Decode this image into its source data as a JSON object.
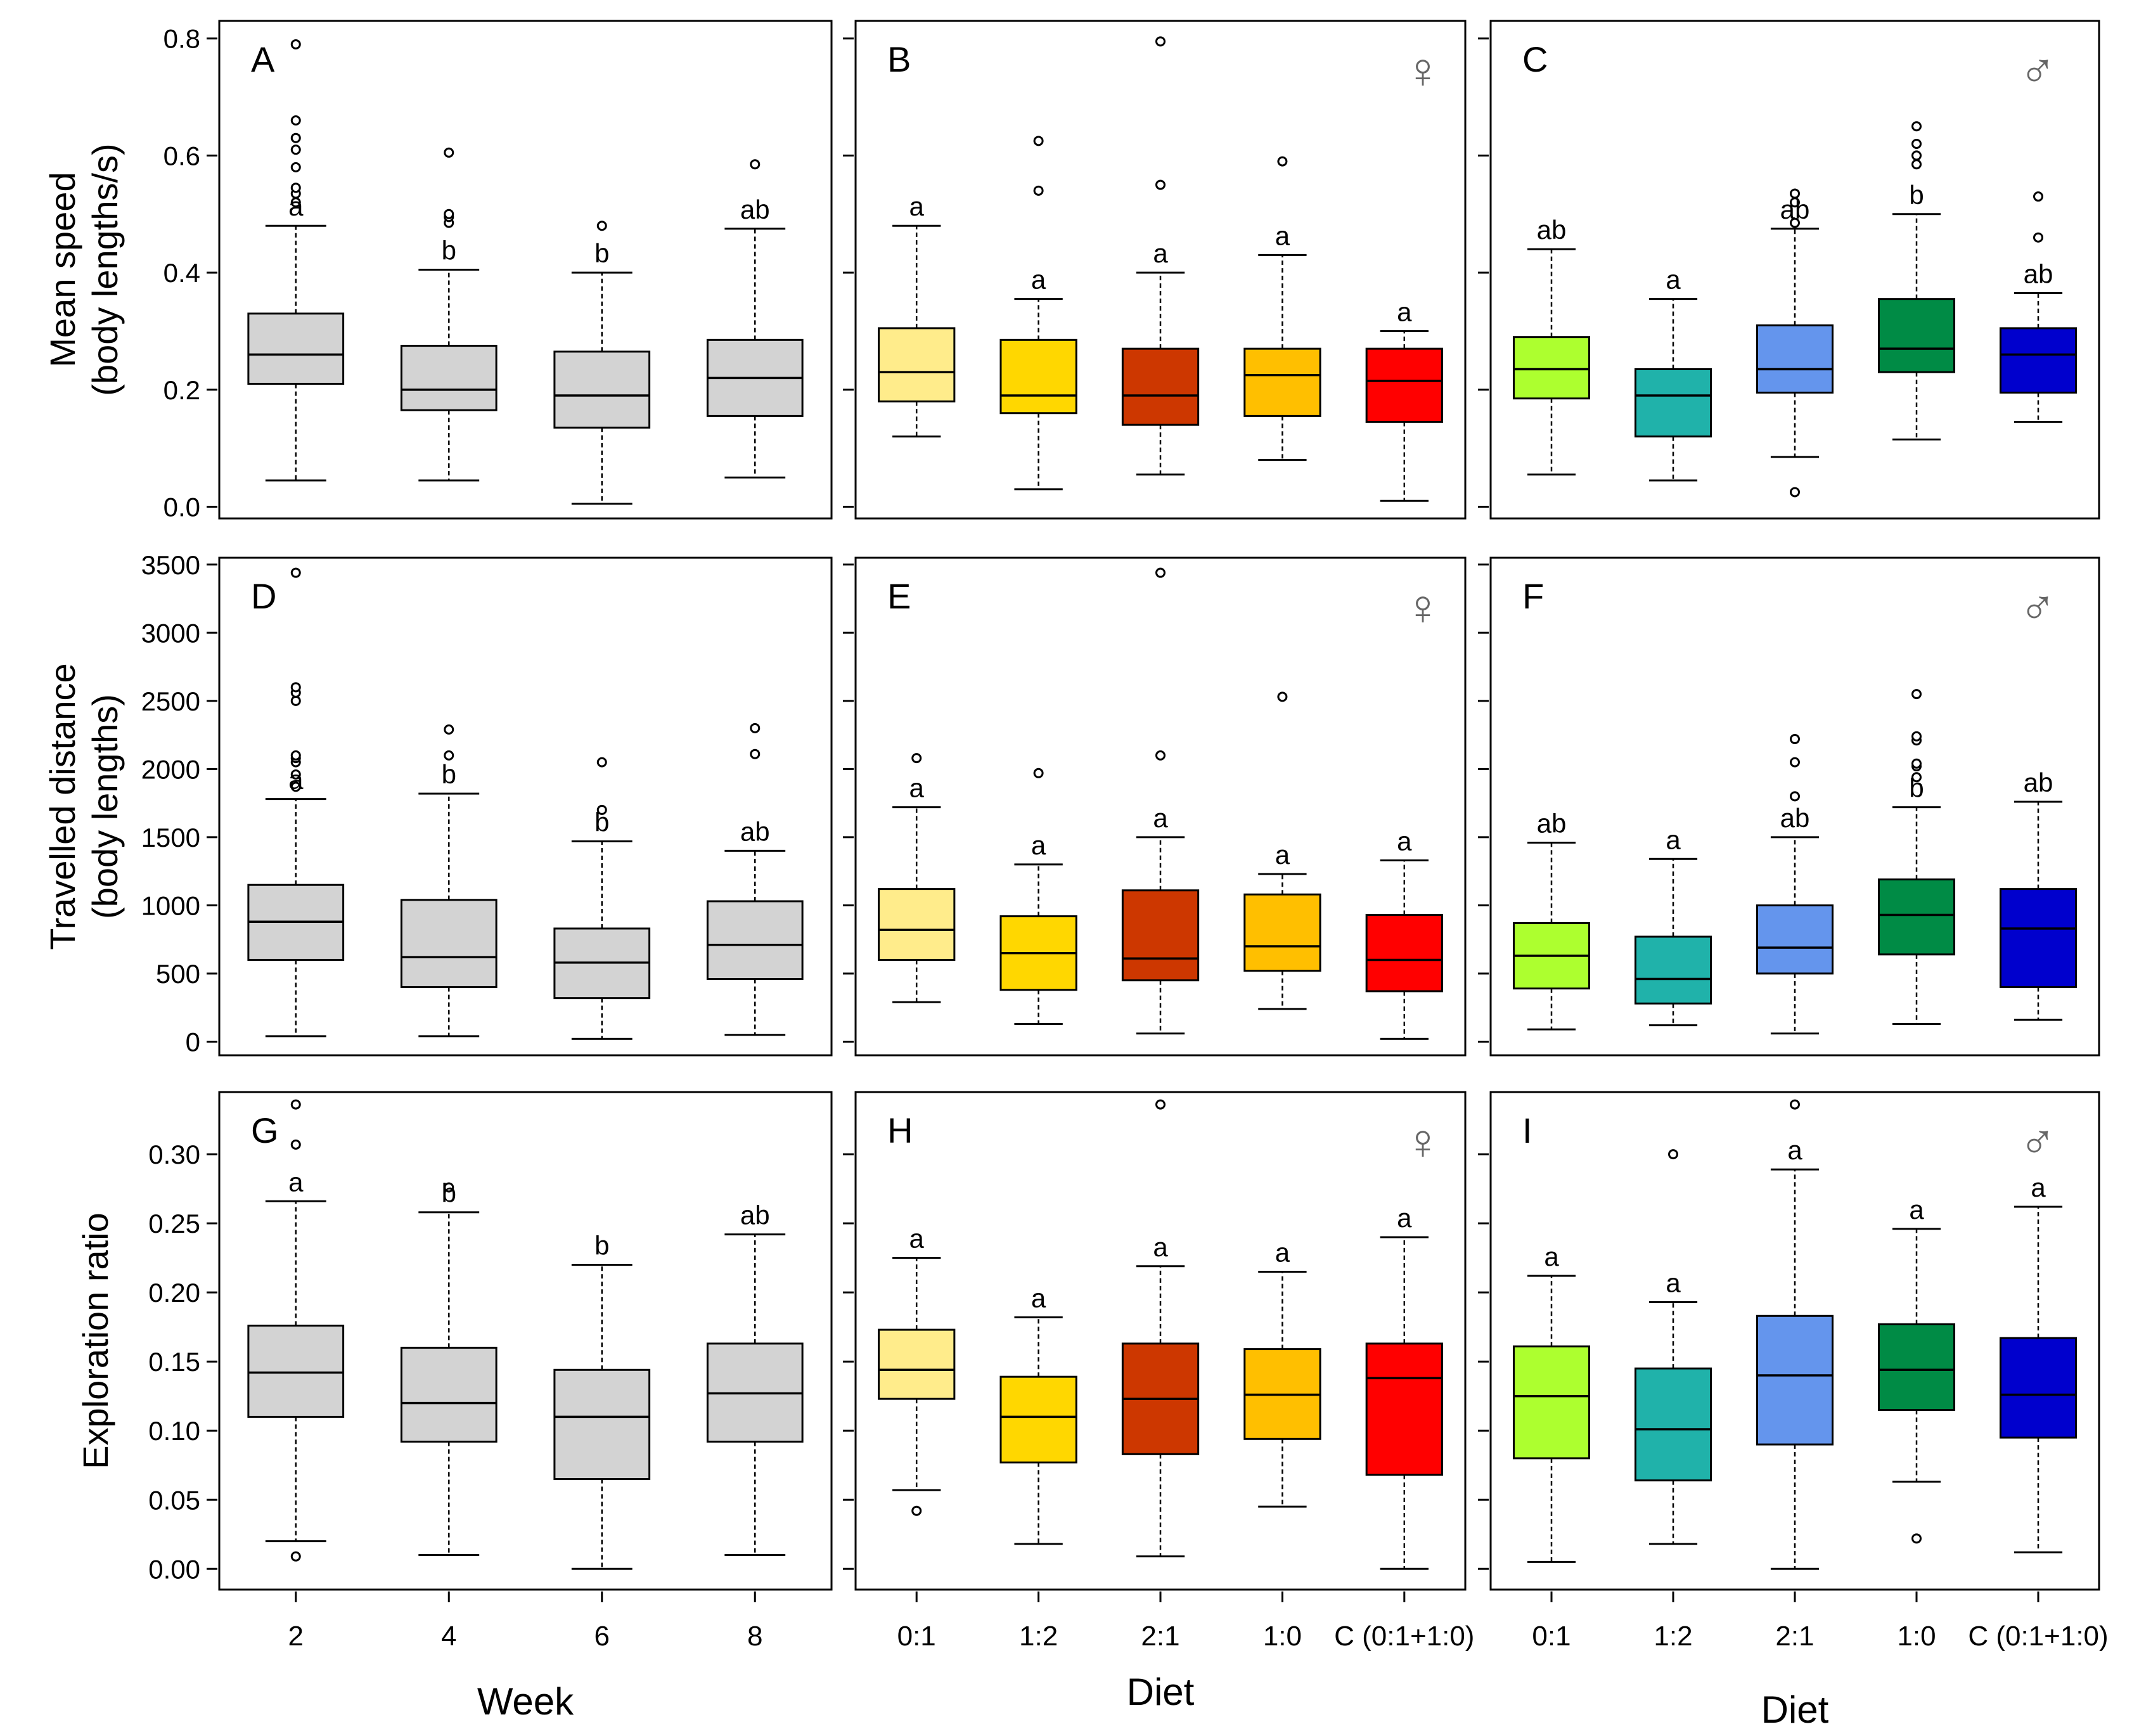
{
  "chart_data": {
    "type": "boxplot",
    "grid": false,
    "rows": [
      {
        "ylabel_line1": "Mean  speed",
        "ylabel_line2": "(body lengths/s)",
        "ylim": [
          -0.02,
          0.83
        ],
        "ticks": [
          "0.0",
          "0.2",
          "0.4",
          "0.6",
          "0.8"
        ],
        "tick_values": [
          0.0,
          0.2,
          0.4,
          0.6,
          0.8
        ]
      },
      {
        "ylabel_line1": "Travelled  distance",
        "ylabel_line2": "(body lengths)",
        "ylim": [
          -100,
          3550
        ],
        "ticks": [
          "0",
          "500",
          "1000",
          "1500",
          "2000",
          "2500",
          "3000",
          "3500"
        ],
        "tick_values": [
          0,
          500,
          1000,
          1500,
          2000,
          2500,
          3000,
          3500
        ]
      },
      {
        "ylabel_line1": "Exploration  ratio",
        "ylabel_line2": "",
        "ylim": [
          -0.015,
          0.345
        ],
        "ticks": [
          "0.00",
          "0.05",
          "0.10",
          "0.15",
          "0.20",
          "0.25",
          "0.30"
        ],
        "tick_values": [
          0.0,
          0.05,
          0.1,
          0.15,
          0.2,
          0.25,
          0.3
        ]
      }
    ],
    "columns": [
      {
        "xlabel": "Week",
        "sex": "",
        "categories": [
          "2",
          "4",
          "6",
          "8"
        ]
      },
      {
        "xlabel": "Diet",
        "sex": "♀",
        "categories": [
          "0:1",
          "1:2",
          "2:1",
          "1:0",
          "C (0:1+1:0)"
        ]
      },
      {
        "xlabel": "Diet",
        "sex": "♂",
        "categories": [
          "0:1",
          "1:2",
          "2:1",
          "1:0",
          "C (0:1+1:0)"
        ]
      }
    ],
    "panels": [
      {
        "letter": "A",
        "row": 0,
        "col": 0,
        "boxes": [
          {
            "color": "#d3d3d3",
            "q1": 0.21,
            "median": 0.26,
            "q3": 0.33,
            "low": 0.045,
            "high": 0.48,
            "outliers": [
              0.52,
              0.535,
              0.545,
              0.58,
              0.61,
              0.63,
              0.66,
              0.79
            ],
            "sig": "a"
          },
          {
            "color": "#d3d3d3",
            "q1": 0.165,
            "median": 0.2,
            "q3": 0.275,
            "low": 0.045,
            "high": 0.405,
            "outliers": [
              0.485,
              0.495,
              0.5,
              0.605
            ],
            "sig": "b"
          },
          {
            "color": "#d3d3d3",
            "q1": 0.135,
            "median": 0.19,
            "q3": 0.265,
            "low": 0.005,
            "high": 0.4,
            "outliers": [
              0.48
            ],
            "sig": "b"
          },
          {
            "color": "#d3d3d3",
            "q1": 0.155,
            "median": 0.22,
            "q3": 0.285,
            "low": 0.05,
            "high": 0.475,
            "outliers": [
              0.585
            ],
            "sig": "ab"
          }
        ]
      },
      {
        "letter": "B",
        "row": 0,
        "col": 1,
        "boxes": [
          {
            "color": "#ffec8b",
            "q1": 0.18,
            "median": 0.23,
            "q3": 0.305,
            "low": 0.12,
            "high": 0.48,
            "outliers": [],
            "sig": "a"
          },
          {
            "color": "#ffd700",
            "q1": 0.16,
            "median": 0.19,
            "q3": 0.285,
            "low": 0.03,
            "high": 0.355,
            "outliers": [
              0.54,
              0.625
            ],
            "sig": "a"
          },
          {
            "color": "#cd3700",
            "q1": 0.14,
            "median": 0.19,
            "q3": 0.27,
            "low": 0.055,
            "high": 0.4,
            "outliers": [
              0.55,
              0.795
            ],
            "sig": "a"
          },
          {
            "color": "#ffbf00",
            "q1": 0.155,
            "median": 0.225,
            "q3": 0.27,
            "low": 0.08,
            "high": 0.43,
            "outliers": [
              0.59
            ],
            "sig": "a"
          },
          {
            "color": "#ff0000",
            "q1": 0.145,
            "median": 0.215,
            "q3": 0.27,
            "low": 0.01,
            "high": 0.3,
            "outliers": [],
            "sig": "a"
          }
        ]
      },
      {
        "letter": "C",
        "row": 0,
        "col": 2,
        "boxes": [
          {
            "color": "#adff2f",
            "q1": 0.185,
            "median": 0.235,
            "q3": 0.29,
            "low": 0.055,
            "high": 0.44,
            "outliers": [],
            "sig": "ab"
          },
          {
            "color": "#20b2aa",
            "q1": 0.12,
            "median": 0.19,
            "q3": 0.235,
            "low": 0.045,
            "high": 0.355,
            "outliers": [],
            "sig": "a"
          },
          {
            "color": "#6495ed",
            "q1": 0.195,
            "median": 0.235,
            "q3": 0.31,
            "low": 0.085,
            "high": 0.475,
            "outliers": [
              0.025,
              0.485,
              0.52,
              0.535
            ],
            "sig": "ab"
          },
          {
            "color": "#008b45",
            "q1": 0.23,
            "median": 0.27,
            "q3": 0.355,
            "low": 0.115,
            "high": 0.5,
            "outliers": [
              0.585,
              0.6,
              0.62,
              0.65
            ],
            "sig": "b"
          },
          {
            "color": "#0000cd",
            "q1": 0.195,
            "median": 0.26,
            "q3": 0.305,
            "low": 0.145,
            "high": 0.365,
            "outliers": [
              0.46,
              0.53
            ],
            "sig": "ab"
          }
        ]
      },
      {
        "letter": "D",
        "row": 1,
        "col": 0,
        "boxes": [
          {
            "color": "#d3d3d3",
            "q1": 600,
            "median": 880,
            "q3": 1150,
            "low": 40,
            "high": 1780,
            "outliers": [
              1870,
              1960,
              2050,
              2080,
              2100,
              2500,
              2560,
              2600,
              3440
            ],
            "sig": "a"
          },
          {
            "color": "#d3d3d3",
            "q1": 400,
            "median": 620,
            "q3": 1040,
            "low": 40,
            "high": 1820,
            "outliers": [
              2100,
              2290
            ],
            "sig": "b"
          },
          {
            "color": "#d3d3d3",
            "q1": 320,
            "median": 580,
            "q3": 830,
            "low": 20,
            "high": 1470,
            "outliers": [
              1700,
              2050
            ],
            "sig": "b"
          },
          {
            "color": "#d3d3d3",
            "q1": 460,
            "median": 710,
            "q3": 1030,
            "low": 50,
            "high": 1400,
            "outliers": [
              2110,
              2300
            ],
            "sig": "ab"
          }
        ]
      },
      {
        "letter": "E",
        "row": 1,
        "col": 1,
        "boxes": [
          {
            "color": "#ffec8b",
            "q1": 600,
            "median": 820,
            "q3": 1120,
            "low": 290,
            "high": 1720,
            "outliers": [
              2080
            ],
            "sig": "a"
          },
          {
            "color": "#ffd700",
            "q1": 380,
            "median": 650,
            "q3": 920,
            "low": 130,
            "high": 1300,
            "outliers": [
              1970
            ],
            "sig": "a"
          },
          {
            "color": "#cd3700",
            "q1": 450,
            "median": 610,
            "q3": 1110,
            "low": 60,
            "high": 1500,
            "outliers": [
              2100,
              3440
            ],
            "sig": "a"
          },
          {
            "color": "#ffbf00",
            "q1": 520,
            "median": 700,
            "q3": 1080,
            "low": 240,
            "high": 1230,
            "outliers": [
              2530
            ],
            "sig": "a"
          },
          {
            "color": "#ff0000",
            "q1": 370,
            "median": 600,
            "q3": 930,
            "low": 20,
            "high": 1330,
            "outliers": [],
            "sig": "a"
          }
        ]
      },
      {
        "letter": "F",
        "row": 1,
        "col": 2,
        "boxes": [
          {
            "color": "#adff2f",
            "q1": 390,
            "median": 630,
            "q3": 870,
            "low": 90,
            "high": 1460,
            "outliers": [],
            "sig": "ab"
          },
          {
            "color": "#20b2aa",
            "q1": 280,
            "median": 460,
            "q3": 770,
            "low": 120,
            "high": 1340,
            "outliers": [],
            "sig": "a"
          },
          {
            "color": "#6495ed",
            "q1": 500,
            "median": 690,
            "q3": 1000,
            "low": 60,
            "high": 1500,
            "outliers": [
              1800,
              2050,
              2220
            ],
            "sig": "ab"
          },
          {
            "color": "#008b45",
            "q1": 640,
            "median": 930,
            "q3": 1190,
            "low": 130,
            "high": 1720,
            "outliers": [
              1940,
              2020,
              2040,
              2210,
              2240,
              2550
            ],
            "sig": "b"
          },
          {
            "color": "#0000cd",
            "q1": 400,
            "median": 830,
            "q3": 1120,
            "low": 160,
            "high": 1760,
            "outliers": [],
            "sig": "ab"
          }
        ]
      },
      {
        "letter": "G",
        "row": 2,
        "col": 0,
        "boxes": [
          {
            "color": "#d3d3d3",
            "q1": 0.11,
            "median": 0.142,
            "q3": 0.176,
            "low": 0.02,
            "high": 0.266,
            "outliers": [
              0.009,
              0.307,
              0.336
            ],
            "sig": "a"
          },
          {
            "color": "#d3d3d3",
            "q1": 0.092,
            "median": 0.12,
            "q3": 0.16,
            "low": 0.01,
            "high": 0.258,
            "outliers": [
              0.276
            ],
            "sig": "b"
          },
          {
            "color": "#d3d3d3",
            "q1": 0.065,
            "median": 0.11,
            "q3": 0.144,
            "low": 0.0,
            "high": 0.22,
            "outliers": [],
            "sig": "b"
          },
          {
            "color": "#d3d3d3",
            "q1": 0.092,
            "median": 0.127,
            "q3": 0.163,
            "low": 0.01,
            "high": 0.242,
            "outliers": [],
            "sig": "ab"
          }
        ]
      },
      {
        "letter": "H",
        "row": 2,
        "col": 1,
        "boxes": [
          {
            "color": "#ffec8b",
            "q1": 0.123,
            "median": 0.144,
            "q3": 0.173,
            "low": 0.057,
            "high": 0.225,
            "outliers": [
              0.042
            ],
            "sig": "a"
          },
          {
            "color": "#ffd700",
            "q1": 0.077,
            "median": 0.11,
            "q3": 0.139,
            "low": 0.018,
            "high": 0.182,
            "outliers": [],
            "sig": "a"
          },
          {
            "color": "#cd3700",
            "q1": 0.083,
            "median": 0.123,
            "q3": 0.163,
            "low": 0.009,
            "high": 0.219,
            "outliers": [
              0.336
            ],
            "sig": "a"
          },
          {
            "color": "#ffbf00",
            "q1": 0.094,
            "median": 0.126,
            "q3": 0.159,
            "low": 0.045,
            "high": 0.215,
            "outliers": [],
            "sig": "a"
          },
          {
            "color": "#ff0000",
            "q1": 0.068,
            "median": 0.138,
            "q3": 0.163,
            "low": 0.0,
            "high": 0.24,
            "outliers": [],
            "sig": "a"
          }
        ]
      },
      {
        "letter": "I",
        "row": 2,
        "col": 2,
        "boxes": [
          {
            "color": "#adff2f",
            "q1": 0.08,
            "median": 0.125,
            "q3": 0.161,
            "low": 0.005,
            "high": 0.212,
            "outliers": [],
            "sig": "a"
          },
          {
            "color": "#20b2aa",
            "q1": 0.064,
            "median": 0.101,
            "q3": 0.145,
            "low": 0.018,
            "high": 0.193,
            "outliers": [
              0.3
            ],
            "sig": "a"
          },
          {
            "color": "#6495ed",
            "q1": 0.09,
            "median": 0.14,
            "q3": 0.183,
            "low": 0.0,
            "high": 0.289,
            "outliers": [
              0.336
            ],
            "sig": "a"
          },
          {
            "color": "#008b45",
            "q1": 0.115,
            "median": 0.144,
            "q3": 0.177,
            "low": 0.063,
            "high": 0.246,
            "outliers": [
              0.022
            ],
            "sig": "a"
          },
          {
            "color": "#0000cd",
            "q1": 0.095,
            "median": 0.126,
            "q3": 0.167,
            "low": 0.012,
            "high": 0.262,
            "outliers": [],
            "sig": "a"
          }
        ]
      }
    ]
  }
}
